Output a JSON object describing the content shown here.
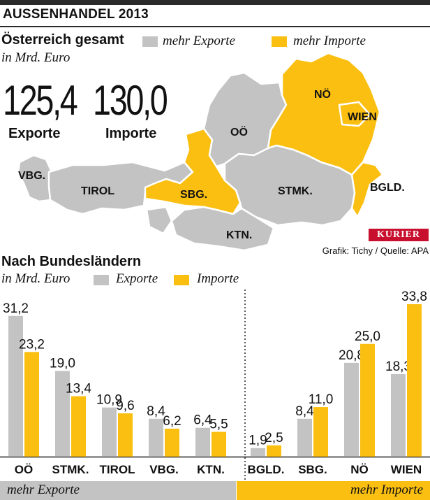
{
  "header": {
    "title": "AUSSENHANDEL 2013"
  },
  "overview": {
    "title": "Österreich gesamt",
    "unit": "in Mrd. Euro",
    "legend_exports": "mehr Exporte",
    "legend_imports": "mehr Importe",
    "exports_value": "125,4",
    "exports_label": "Exporte",
    "imports_value": "130,0",
    "imports_label": "Importe"
  },
  "map": {
    "regions": [
      {
        "name": "VBG.",
        "type": "exports"
      },
      {
        "name": "TIROL",
        "type": "exports"
      },
      {
        "name": "SBG.",
        "type": "imports"
      },
      {
        "name": "OÖ",
        "type": "exports"
      },
      {
        "name": "STMK.",
        "type": "exports"
      },
      {
        "name": "KTN.",
        "type": "exports"
      },
      {
        "name": "NÖ",
        "type": "imports"
      },
      {
        "name": "WIEN",
        "type": "imports"
      },
      {
        "name": "BGLD.",
        "type": "imports"
      }
    ]
  },
  "source": {
    "brand": "KURIER",
    "credit": "Grafik: Tichy / Quelle: APA"
  },
  "states": {
    "title": "Nach Bundesländern",
    "unit": "in Mrd. Euro",
    "legend_exports": "Exporte",
    "legend_imports": "Importe"
  },
  "footer": {
    "left": "mehr Exporte",
    "right": "mehr Importe"
  },
  "colors": {
    "exports": "#c3c3c3",
    "imports": "#fbbf12",
    "text": "#111111"
  },
  "chart_data": {
    "type": "bar",
    "categories": [
      "OÖ",
      "STMK.",
      "TIROL",
      "VBG.",
      "KTN.",
      "BGLD.",
      "SBG.",
      "NÖ",
      "WIEN"
    ],
    "series": [
      {
        "name": "Exporte",
        "values": [
          31.2,
          19.0,
          10.9,
          8.4,
          6.4,
          1.9,
          8.4,
          20.8,
          18.3
        ],
        "labels": [
          "31,2",
          "19,0",
          "10,9",
          "8,4",
          "6,4",
          "1,9",
          "8,4",
          "20,8",
          "18,3"
        ]
      },
      {
        "name": "Importe",
        "values": [
          23.2,
          13.4,
          9.6,
          6.2,
          5.5,
          2.5,
          11.0,
          25.0,
          33.8
        ],
        "labels": [
          "23,2",
          "13,4",
          "9,6",
          "6,2",
          "5,5",
          "2,5",
          "11,0",
          "25,0",
          "33,8"
        ]
      }
    ],
    "groups": [
      {
        "label": "mehr Exporte",
        "categories": [
          "OÖ",
          "STMK.",
          "TIROL",
          "VBG.",
          "KTN."
        ]
      },
      {
        "label": "mehr Importe",
        "categories": [
          "BGLD.",
          "SBG.",
          "NÖ",
          "WIEN"
        ]
      }
    ],
    "ylim": [
      0,
      35
    ],
    "grid": false
  }
}
